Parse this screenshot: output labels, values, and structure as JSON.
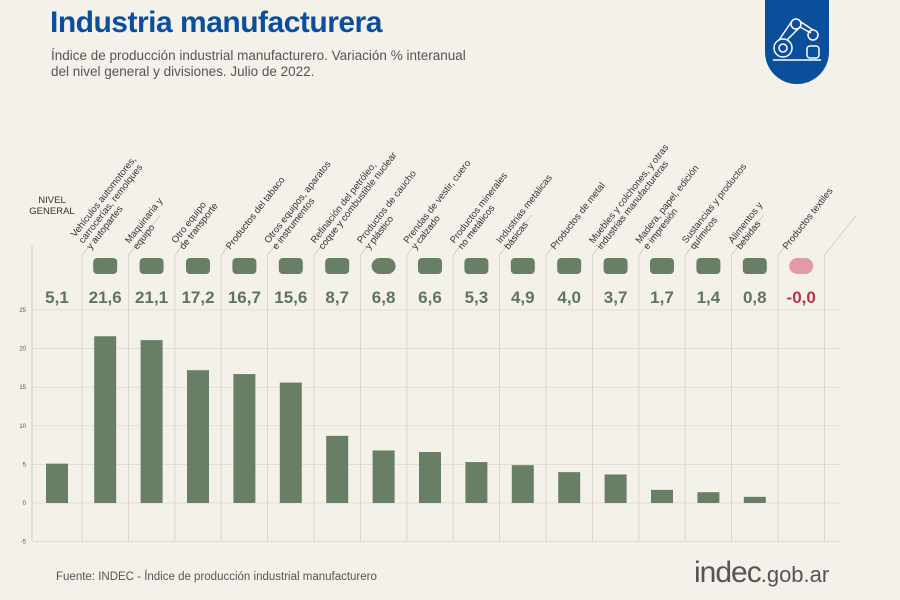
{
  "header": {
    "title": "Industria manufacturera",
    "subtitle": "Índice de producción industrial manufacturero. Variación % interanual del nivel general y divisiones. Julio de 2022."
  },
  "badge_icon": "robot-arm-icon",
  "footer": {
    "source": "Fuente: INDEC - Índice de producción industrial manufacturero",
    "logo": "indec.gob.ar"
  },
  "colors": {
    "bar": "#687f66",
    "negative": "#b3374b",
    "title": "#0b4f9c",
    "value": "#5f745d"
  },
  "chart_data": {
    "type": "bar",
    "ylim": [
      -5,
      25
    ],
    "yticks": [
      -5,
      0,
      5,
      10,
      15,
      20,
      25
    ],
    "grid": true,
    "categories": [
      {
        "label": "NIVEL GENERAL",
        "lines": [
          "NIVEL",
          "GENERAL"
        ],
        "icon": ""
      },
      {
        "label": "Vehículos automotores, carrocerías, remolques y autopartes",
        "lines": [
          "Vehículos automotores,",
          "carrocerías, remolques",
          "y autopartes"
        ],
        "icon": "car-icon"
      },
      {
        "label": "Maquinaria y equipo",
        "lines": [
          "Maquinaria y",
          "equipo"
        ],
        "icon": "tractor-icon"
      },
      {
        "label": "Otro equipo de transporte",
        "lines": [
          "Otro equipo",
          "de transporte"
        ],
        "icon": "motorcycle-icon"
      },
      {
        "label": "Productos del tabaco",
        "lines": [
          "Productos del tabaco"
        ],
        "icon": "pipe-icon"
      },
      {
        "label": "Otros equipos, aparatos e instrumentos",
        "lines": [
          "Otros equipos, aparatos",
          "e instrumentos"
        ],
        "icon": "laptop-icon"
      },
      {
        "label": "Refinación del petróleo, coque y combustible nuclear",
        "lines": [
          "Refinación del petróleo,",
          "coque y combustible nuclear"
        ],
        "icon": "refinery-icon"
      },
      {
        "label": "Productos de caucho y plástico",
        "lines": [
          "Productos de caucho",
          "y plástico"
        ],
        "icon": "tire-icon"
      },
      {
        "label": "Prendas de vestir, cuero y calzado",
        "lines": [
          "Prendas de vestir, cuero",
          "y calzado"
        ],
        "icon": "shirt-icon"
      },
      {
        "label": "Productos minerales no metálicos",
        "lines": [
          "Productos minerales",
          "no metálicos"
        ],
        "icon": "cement-mixer-icon"
      },
      {
        "label": "Industrias metálicas básicas",
        "lines": [
          "Industrias metálicas",
          "básicas"
        ],
        "icon": "steel-coil-icon"
      },
      {
        "label": "Productos de metal",
        "lines": [
          "Productos de metal"
        ],
        "icon": "hammer-icon"
      },
      {
        "label": "Muebles y colchones, y otras industrias manufactureras",
        "lines": [
          "Muebles y colchones, y otras",
          "industrias manufactureras"
        ],
        "icon": "furniture-icon"
      },
      {
        "label": "Madera, papel, edición e impresión",
        "lines": [
          "Madera, papel, edición",
          "e impresión"
        ],
        "icon": "paper-icon"
      },
      {
        "label": "Sustancias y productos químicos",
        "lines": [
          "Sustancias y productos",
          "químicos"
        ],
        "icon": "flask-icon"
      },
      {
        "label": "Alimentos y bebidas",
        "lines": [
          "Alimentos y",
          "bebidas"
        ],
        "icon": "bottle-icon"
      },
      {
        "label": "Productos textiles",
        "lines": [
          "Productos textiles"
        ],
        "icon": "thread-spool-icon"
      }
    ],
    "values": [
      5.1,
      21.6,
      21.1,
      17.2,
      16.7,
      15.6,
      8.7,
      6.8,
      6.6,
      5.3,
      4.9,
      4.0,
      3.7,
      1.7,
      1.4,
      0.8,
      -0.0
    ],
    "value_labels": [
      "5,1",
      "21,6",
      "21,1",
      "17,2",
      "16,7",
      "15,6",
      "8,7",
      "6,8",
      "6,6",
      "5,3",
      "4,9",
      "4,0",
      "3,7",
      "1,7",
      "1,4",
      "0,8",
      "-0,0"
    ]
  }
}
